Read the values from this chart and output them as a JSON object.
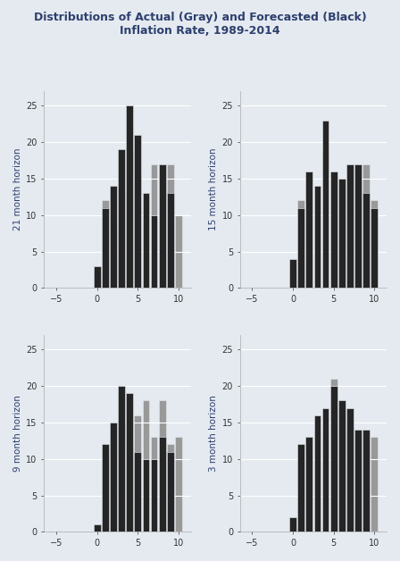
{
  "title": "Distributions of Actual (Gray) and Forecasted (Black)\nInflation Rate, 1989-2014",
  "title_fontsize": 9,
  "background_color": "#e4eaf0",
  "plot_bg_color": "#e4eaf0",
  "x_positions": [
    -5,
    -4,
    -3,
    -2,
    -1,
    0,
    1,
    2,
    3,
    4,
    5,
    6,
    7,
    8,
    9,
    10
  ],
  "subplots": [
    {
      "ylabel": "21 month horizon",
      "actual_gray": [
        0,
        0,
        0,
        0,
        0,
        2,
        12,
        8,
        13,
        19,
        15,
        13,
        17,
        17,
        17,
        10
      ],
      "forecast_black": [
        0,
        0,
        0,
        0,
        0,
        3,
        11,
        14,
        19,
        25,
        21,
        13,
        10,
        17,
        13,
        0
      ]
    },
    {
      "ylabel": "15 month horizon",
      "actual_gray": [
        0,
        0,
        0,
        0,
        0,
        2,
        12,
        4,
        14,
        19,
        16,
        12,
        17,
        17,
        17,
        12
      ],
      "forecast_black": [
        0,
        0,
        0,
        0,
        0,
        4,
        11,
        16,
        14,
        23,
        16,
        15,
        17,
        17,
        13,
        11
      ]
    },
    {
      "ylabel": "9 month horizon",
      "actual_gray": [
        0,
        0,
        0,
        0,
        0,
        1,
        10,
        15,
        15,
        12,
        16,
        18,
        13,
        18,
        12,
        13
      ],
      "forecast_black": [
        0,
        0,
        0,
        0,
        0,
        1,
        12,
        15,
        20,
        19,
        11,
        10,
        10,
        13,
        11,
        0
      ]
    },
    {
      "ylabel": "3 month horizon",
      "actual_gray": [
        0,
        0,
        0,
        0,
        0,
        2,
        10,
        13,
        14,
        13,
        21,
        17,
        14,
        14,
        13,
        13
      ],
      "forecast_black": [
        0,
        0,
        0,
        0,
        0,
        2,
        12,
        13,
        16,
        17,
        20,
        18,
        17,
        14,
        14,
        0
      ]
    }
  ],
  "gray_color": "#999999",
  "black_color": "#252525",
  "xlim": [
    -6.5,
    11.5
  ],
  "ylim": [
    0,
    27
  ],
  "xticks": [
    -5,
    0,
    5,
    10
  ],
  "yticks": [
    0,
    5,
    10,
    15,
    20,
    25
  ]
}
